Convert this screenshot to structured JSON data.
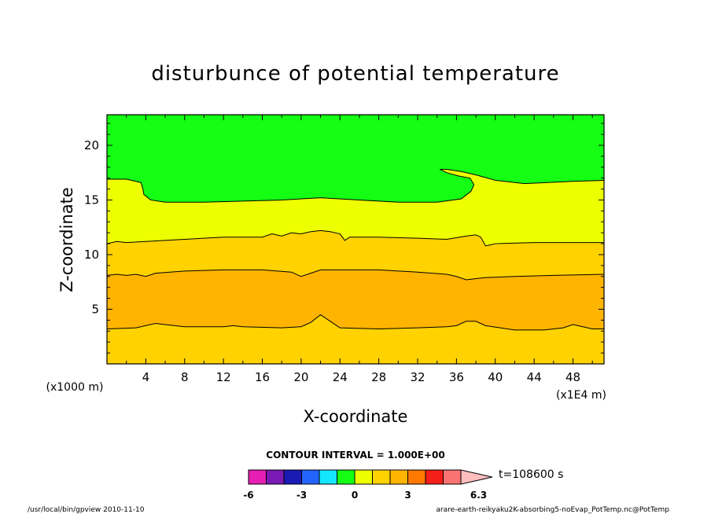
{
  "chart_data": {
    "type": "contour",
    "title": "disturbunce of potential temperature",
    "xlabel": "X-coordinate",
    "ylabel": "Z-coordinate",
    "x_unit": "(x1E4 m)",
    "y_unit": "(x1000 m)",
    "xlim": [
      0,
      51.2
    ],
    "ylim": [
      0,
      22.8
    ],
    "x_ticks": [
      4,
      8,
      12,
      16,
      20,
      24,
      28,
      32,
      36,
      40,
      44,
      48
    ],
    "y_ticks": [
      5,
      10,
      15,
      20
    ],
    "contour_interval_text": "CONTOUR INTERVAL = 1.000E+00",
    "time_text": "t=108600 s",
    "colorbar": {
      "colors": [
        "#e61eb4",
        "#7a19b4",
        "#1a1ab4",
        "#2364ff",
        "#14e6ff",
        "#14ff14",
        "#eeff00",
        "#ffd200",
        "#ffb400",
        "#ff7800",
        "#f51e19",
        "#f97373",
        "#ffbebe"
      ],
      "levels": [
        -6,
        -5,
        -4,
        -3,
        -2,
        -1,
        0,
        1,
        2,
        3,
        4,
        5,
        6,
        6.3
      ],
      "labels": [
        "-6",
        "-3",
        "0",
        "3",
        "6.3"
      ],
      "label_levels": [
        -6,
        -3,
        0,
        3,
        6.3
      ]
    },
    "bands": [
      {
        "name": "band-1-to-2",
        "color": "#ffd200",
        "bottom": [
          [
            0,
            0
          ],
          [
            51.2,
            0
          ]
        ],
        "top": [
          [
            0,
            3.2
          ],
          [
            3,
            3.3
          ],
          [
            5,
            3.7
          ],
          [
            6,
            3.6
          ],
          [
            8,
            3.4
          ],
          [
            12,
            3.4
          ],
          [
            13,
            3.5
          ],
          [
            14,
            3.4
          ],
          [
            18,
            3.3
          ],
          [
            20,
            3.4
          ],
          [
            21,
            3.8
          ],
          [
            22,
            4.5
          ],
          [
            23,
            3.9
          ],
          [
            24,
            3.3
          ],
          [
            28,
            3.2
          ],
          [
            32,
            3.3
          ],
          [
            35,
            3.4
          ],
          [
            36,
            3.5
          ],
          [
            37,
            3.9
          ],
          [
            38,
            3.9
          ],
          [
            39,
            3.5
          ],
          [
            42,
            3.1
          ],
          [
            45,
            3.1
          ],
          [
            47,
            3.3
          ],
          [
            48,
            3.6
          ],
          [
            49,
            3.4
          ],
          [
            50,
            3.2
          ],
          [
            51.2,
            3.2
          ]
        ]
      },
      {
        "name": "band-2-to-3",
        "color": "#ffb400",
        "bottom": [
          [
            0,
            3.2
          ],
          [
            3,
            3.3
          ],
          [
            5,
            3.7
          ],
          [
            6,
            3.6
          ],
          [
            8,
            3.4
          ],
          [
            12,
            3.4
          ],
          [
            13,
            3.5
          ],
          [
            14,
            3.4
          ],
          [
            18,
            3.3
          ],
          [
            20,
            3.4
          ],
          [
            21,
            3.8
          ],
          [
            22,
            4.5
          ],
          [
            23,
            3.9
          ],
          [
            24,
            3.3
          ],
          [
            28,
            3.2
          ],
          [
            32,
            3.3
          ],
          [
            35,
            3.4
          ],
          [
            36,
            3.5
          ],
          [
            37,
            3.9
          ],
          [
            38,
            3.9
          ],
          [
            39,
            3.5
          ],
          [
            42,
            3.1
          ],
          [
            45,
            3.1
          ],
          [
            47,
            3.3
          ],
          [
            48,
            3.6
          ],
          [
            49,
            3.4
          ],
          [
            50,
            3.2
          ],
          [
            51.2,
            3.2
          ]
        ],
        "top": [
          [
            0,
            8.1
          ],
          [
            1,
            8.2
          ],
          [
            2,
            8.1
          ],
          [
            3,
            8.2
          ],
          [
            4,
            8.0
          ],
          [
            5,
            8.3
          ],
          [
            8,
            8.5
          ],
          [
            12,
            8.6
          ],
          [
            16,
            8.6
          ],
          [
            19,
            8.4
          ],
          [
            20,
            8.0
          ],
          [
            21,
            8.3
          ],
          [
            22,
            8.6
          ],
          [
            28,
            8.6
          ],
          [
            32,
            8.4
          ],
          [
            35,
            8.2
          ],
          [
            36,
            8.0
          ],
          [
            37,
            7.7
          ],
          [
            39,
            7.9
          ],
          [
            42,
            8.0
          ],
          [
            46,
            8.1
          ],
          [
            51.2,
            8.2
          ]
        ]
      },
      {
        "name": "band-1-to-2-upper",
        "color": "#ffd200",
        "bottom": [
          [
            0,
            8.1
          ],
          [
            1,
            8.2
          ],
          [
            2,
            8.1
          ],
          [
            3,
            8.2
          ],
          [
            4,
            8.0
          ],
          [
            5,
            8.3
          ],
          [
            8,
            8.5
          ],
          [
            12,
            8.6
          ],
          [
            16,
            8.6
          ],
          [
            19,
            8.4
          ],
          [
            20,
            8.0
          ],
          [
            21,
            8.3
          ],
          [
            22,
            8.6
          ],
          [
            28,
            8.6
          ],
          [
            32,
            8.4
          ],
          [
            35,
            8.2
          ],
          [
            36,
            8.0
          ],
          [
            37,
            7.7
          ],
          [
            39,
            7.9
          ],
          [
            42,
            8.0
          ],
          [
            46,
            8.1
          ],
          [
            51.2,
            8.2
          ]
        ],
        "top": [
          [
            0,
            11.0
          ],
          [
            1,
            11.2
          ],
          [
            2,
            11.1
          ],
          [
            4,
            11.2
          ],
          [
            8,
            11.4
          ],
          [
            12,
            11.6
          ],
          [
            16,
            11.6
          ],
          [
            17,
            11.9
          ],
          [
            18,
            11.7
          ],
          [
            19,
            12.0
          ],
          [
            20,
            11.9
          ],
          [
            21,
            12.1
          ],
          [
            22,
            12.2
          ],
          [
            23,
            12.1
          ],
          [
            24,
            11.9
          ],
          [
            24.5,
            11.3
          ],
          [
            25,
            11.6
          ],
          [
            28,
            11.6
          ],
          [
            32,
            11.5
          ],
          [
            35,
            11.4
          ],
          [
            37,
            11.7
          ],
          [
            38,
            11.8
          ],
          [
            38.5,
            11.6
          ],
          [
            39,
            10.8
          ],
          [
            39.5,
            10.9
          ],
          [
            40,
            11.0
          ],
          [
            44,
            11.1
          ],
          [
            48,
            11.1
          ],
          [
            51.2,
            11.1
          ]
        ]
      },
      {
        "name": "band-0-to-1",
        "color": "#eeff00",
        "bottom": [
          [
            0,
            11.0
          ],
          [
            1,
            11.2
          ],
          [
            2,
            11.1
          ],
          [
            4,
            11.2
          ],
          [
            8,
            11.4
          ],
          [
            12,
            11.6
          ],
          [
            16,
            11.6
          ],
          [
            17,
            11.9
          ],
          [
            18,
            11.7
          ],
          [
            19,
            12.0
          ],
          [
            20,
            11.9
          ],
          [
            21,
            12.1
          ],
          [
            22,
            12.2
          ],
          [
            23,
            12.1
          ],
          [
            24,
            11.9
          ],
          [
            24.5,
            11.3
          ],
          [
            25,
            11.6
          ],
          [
            28,
            11.6
          ],
          [
            32,
            11.5
          ],
          [
            35,
            11.4
          ],
          [
            37,
            11.7
          ],
          [
            38,
            11.8
          ],
          [
            38.5,
            11.6
          ],
          [
            39,
            10.8
          ],
          [
            39.5,
            10.9
          ],
          [
            40,
            11.0
          ],
          [
            44,
            11.1
          ],
          [
            48,
            11.1
          ],
          [
            51.2,
            11.1
          ]
        ],
        "top": [
          [
            0,
            22.8
          ],
          [
            51.2,
            22.8
          ]
        ]
      }
    ],
    "region_minus1_to_0": {
      "color": "#14ff14",
      "boundary": [
        [
          0,
          22.8
        ],
        [
          0,
          16.9
        ],
        [
          2,
          16.9
        ],
        [
          3.5,
          16.6
        ],
        [
          3.7,
          16.0
        ],
        [
          3.8,
          15.5
        ],
        [
          4.5,
          15.0
        ],
        [
          6,
          14.8
        ],
        [
          10,
          14.8
        ],
        [
          14,
          14.9
        ],
        [
          18,
          15.0
        ],
        [
          22,
          15.2
        ],
        [
          26,
          15.0
        ],
        [
          30,
          14.8
        ],
        [
          34,
          14.8
        ],
        [
          36.5,
          15.1
        ],
        [
          37.5,
          15.8
        ],
        [
          37.8,
          16.4
        ],
        [
          37.4,
          17.0
        ],
        [
          36.2,
          17.2
        ],
        [
          35,
          17.5
        ],
        [
          34.3,
          17.8
        ],
        [
          35,
          17.8
        ],
        [
          36.5,
          17.6
        ],
        [
          38,
          17.3
        ],
        [
          40,
          16.8
        ],
        [
          43,
          16.5
        ],
        [
          48,
          16.7
        ],
        [
          51.2,
          16.8
        ],
        [
          51.2,
          22.8
        ]
      ]
    }
  },
  "footer": {
    "left": "/usr/local/bin/gpview  2010-11-10",
    "right": "arare-earth-reikyaku2K-absorbing5-noEvap_PotTemp.nc@PotTemp"
  }
}
